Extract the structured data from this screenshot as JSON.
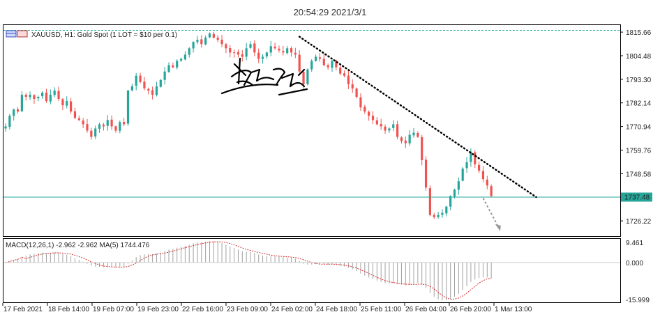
{
  "timestamp": "20:54:29 2021/3/1",
  "header": {
    "symbol_line": "XAUUSD, H1:  Gold Spot (1 LOT = $10 per 0.1)"
  },
  "colors": {
    "bull": "#26a69a",
    "bear": "#ef5350",
    "grid_border": "#000000",
    "price_line": "#26a69a",
    "trend_line": "#000000",
    "arrow": "#999999",
    "macd_hist": "#a0a0a0",
    "macd_signal": "#d32f2f"
  },
  "chart_data": {
    "type": "candlestick",
    "instrument": "XAUUSD",
    "timeframe": "H1",
    "y_ticks": [
      "1815.66",
      "1804.48",
      "1793.30",
      "1782.14",
      "1770.94",
      "1759.76",
      "1748.58",
      "1726.22"
    ],
    "ylim": [
      1719,
      1819
    ],
    "current_price": "1737.48",
    "x_ticks": [
      "17 Feb 2021",
      "18 Feb 14:00",
      "19 Feb 07:00",
      "19 Feb 23:00",
      "22 Feb 16:00",
      "23 Feb 09:00",
      "24 Feb 02:00",
      "24 Feb 18:00",
      "25 Feb 11:00",
      "26 Feb 04:00",
      "26 Feb 20:00",
      "1 Mar 13:00"
    ],
    "trend_line": {
      "from": {
        "x_index": 72,
        "price": 1813.5
      },
      "to": {
        "x_index": 130,
        "price": 1737.5
      }
    },
    "projection_arrow": {
      "from": {
        "x_index": 117,
        "price": 1737
      },
      "to": {
        "x_index": 121,
        "price": 1722
      }
    },
    "close_path": [
      1771,
      1776,
      1779,
      1778,
      1786,
      1785,
      1786,
      1784,
      1785,
      1787,
      1783,
      1786,
      1788,
      1784,
      1781,
      1783,
      1778,
      1775,
      1774,
      1772,
      1769,
      1766,
      1770,
      1772,
      1771,
      1774,
      1771,
      1769,
      1773,
      1772,
      1788,
      1790,
      1795,
      1792,
      1789,
      1788,
      1786,
      1790,
      1793,
      1797,
      1800,
      1799,
      1802,
      1803,
      1805,
      1808,
      1811,
      1812,
      1810,
      1813,
      1815,
      1813,
      1812,
      1810,
      1808,
      1806,
      1806,
      1805,
      1804,
      1808,
      1810,
      1806,
      1803,
      1804,
      1806,
      1809,
      1808,
      1807,
      1806,
      1808,
      1806,
      1805,
      1797,
      1791,
      1798,
      1802,
      1804,
      1803,
      1800,
      1799,
      1802,
      1799,
      1796,
      1795,
      1791,
      1789,
      1785,
      1780,
      1778,
      1776,
      1774,
      1772,
      1771,
      1769,
      1770,
      1772,
      1766,
      1764,
      1763,
      1767,
      1768,
      1766,
      1755,
      1742,
      1729,
      1728,
      1729,
      1730,
      1733,
      1738,
      1741,
      1745,
      1751,
      1754,
      1759,
      1753,
      1750,
      1746,
      1743,
      1738
    ],
    "macd": {
      "label": "MACD(12,26,1) -2.962 -2.962 MA(5) 1744.476",
      "y_ticks": [
        "9.461",
        "0.000",
        "-15.999"
      ],
      "ylim": [
        -16,
        9.5
      ],
      "zero_line": 0
    }
  }
}
